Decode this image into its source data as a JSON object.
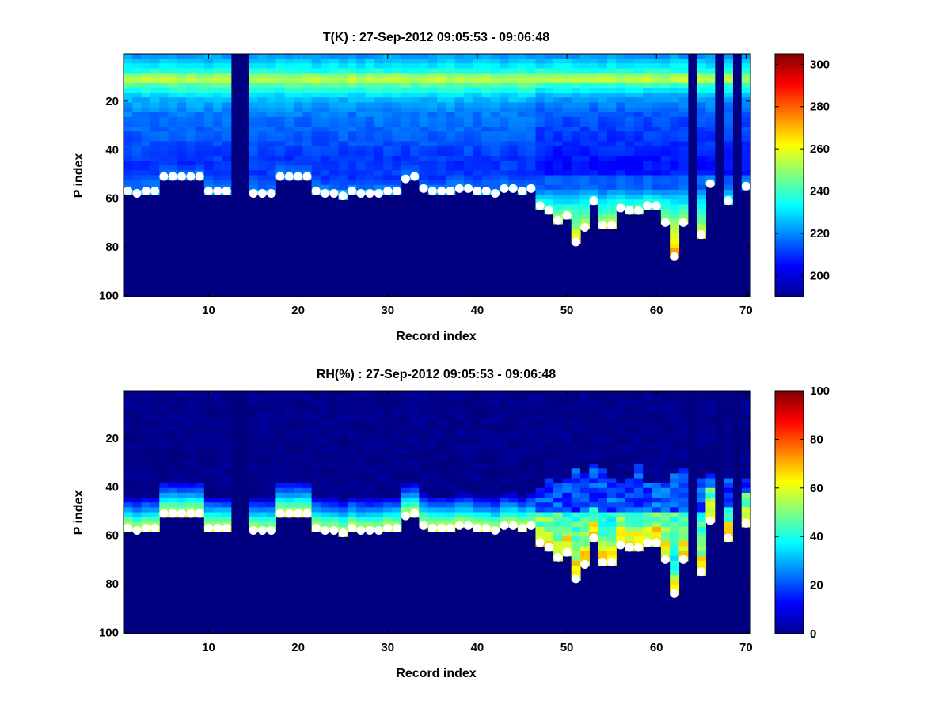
{
  "figure": {
    "background": "#ffffff",
    "colormap": "jet",
    "colormap_stops": [
      "#00008f",
      "#0000ff",
      "#00ffff",
      "#ffff00",
      "#ff0000",
      "#800000"
    ]
  },
  "chart_data": [
    {
      "type": "heatmap",
      "title": "T(K) : 27-Sep-2012 09:05:53 - 09:06:48",
      "xlabel": "Record index",
      "ylabel": "P index",
      "xlim": [
        0.5,
        70.5
      ],
      "ylim": [
        0.5,
        100.5
      ],
      "y_reversed": true,
      "x_ticks": [
        10,
        20,
        30,
        40,
        50,
        60,
        70
      ],
      "x_tick_labels": [
        "10",
        "20",
        "30",
        "40",
        "50",
        "60",
        "70"
      ],
      "y_ticks": [
        20,
        40,
        60,
        80,
        100
      ],
      "y_tick_labels": [
        "20",
        "40",
        "60",
        "80",
        "100"
      ],
      "color_range": [
        190,
        305
      ],
      "colorbar_ticks": [
        200,
        220,
        240,
        260,
        280,
        300
      ],
      "colorbar_tick_labels": [
        "200",
        "220",
        "240",
        "260",
        "280",
        "300"
      ],
      "fill_value": 190,
      "missing_records": [
        13,
        14,
        64,
        67,
        69
      ],
      "surface_p_index": [
        57,
        58,
        57,
        57,
        51,
        51,
        51,
        51,
        51,
        57,
        57,
        57,
        0,
        0,
        58,
        58,
        58,
        51,
        51,
        51,
        51,
        57,
        58,
        58,
        59,
        57,
        58,
        58,
        58,
        57,
        57,
        52,
        51,
        56,
        57,
        57,
        57,
        56,
        56,
        57,
        57,
        58,
        56,
        56,
        57,
        56,
        63,
        65,
        69,
        67,
        78,
        72,
        61,
        71,
        71,
        64,
        65,
        65,
        63,
        63,
        70,
        84,
        70,
        0,
        75,
        54,
        0,
        61,
        0,
        55
      ],
      "profile_T_K": [
        [
          1,
          222
        ],
        [
          8,
          238
        ],
        [
          10,
          262
        ],
        [
          12,
          246
        ],
        [
          18,
          226
        ],
        [
          25,
          218
        ],
        [
          35,
          214
        ],
        [
          45,
          210
        ],
        [
          55,
          212
        ],
        [
          60,
          226
        ],
        [
          70,
          245
        ],
        [
          80,
          262
        ],
        [
          85,
          272
        ]
      ]
    },
    {
      "type": "heatmap",
      "title": "RH(%) : 27-Sep-2012 09:05:53 - 09:06:48",
      "xlabel": "Record index",
      "ylabel": "P index",
      "xlim": [
        0.5,
        70.5
      ],
      "ylim": [
        0.5,
        100.5
      ],
      "y_reversed": true,
      "x_ticks": [
        10,
        20,
        30,
        40,
        50,
        60,
        70
      ],
      "x_tick_labels": [
        "10",
        "20",
        "30",
        "40",
        "50",
        "60",
        "70"
      ],
      "y_ticks": [
        20,
        40,
        60,
        80,
        100
      ],
      "y_tick_labels": [
        "20",
        "40",
        "60",
        "80",
        "100"
      ],
      "color_range": [
        0,
        100
      ],
      "colorbar_ticks": [
        0,
        20,
        40,
        60,
        80,
        100
      ],
      "colorbar_tick_labels": [
        "0",
        "20",
        "40",
        "60",
        "80",
        "100"
      ],
      "fill_value": 0,
      "missing_records": [
        13,
        14,
        64,
        67,
        69
      ],
      "surface_p_index": [
        57,
        58,
        57,
        57,
        51,
        51,
        51,
        51,
        51,
        57,
        57,
        57,
        0,
        0,
        58,
        58,
        58,
        51,
        51,
        51,
        51,
        57,
        58,
        58,
        59,
        57,
        58,
        58,
        58,
        57,
        57,
        52,
        51,
        56,
        57,
        57,
        57,
        56,
        56,
        57,
        57,
        58,
        56,
        56,
        57,
        56,
        63,
        65,
        69,
        67,
        78,
        72,
        61,
        71,
        71,
        64,
        65,
        65,
        63,
        63,
        70,
        84,
        70,
        0,
        75,
        54,
        0,
        61,
        0,
        55
      ],
      "typical_RH_percent_near_surface": [
        30,
        55
      ]
    }
  ]
}
